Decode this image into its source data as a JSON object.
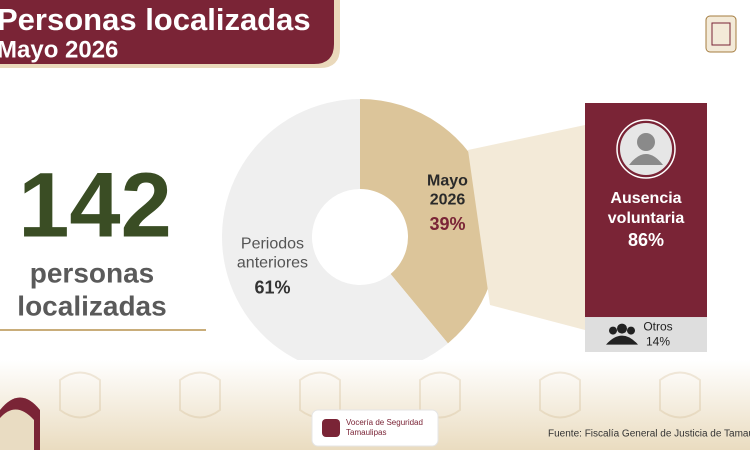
{
  "header": {
    "title": "Personas localizadas",
    "subtitle": "Mayo 2026"
  },
  "kpi": {
    "value": "142",
    "label_line1": "personas",
    "label_line2": "localizadas"
  },
  "chart_data": [
    {
      "type": "pie",
      "categories": [
        "Mayo 2026",
        "Periodos anteriores"
      ],
      "values": [
        39,
        61
      ],
      "value_labels": [
        "39%",
        "61%"
      ],
      "colors": [
        "#dcc59a",
        "#efefef"
      ]
    },
    {
      "type": "bar",
      "categories": [
        "Ausencia voluntaria",
        "Otros"
      ],
      "values": [
        86,
        14
      ],
      "value_labels": [
        "86%",
        "14%"
      ],
      "colors": [
        "#7a2436",
        "#dedede"
      ]
    }
  ],
  "footer": {
    "agency_line1": "Vocería de Seguridad",
    "agency_line2": "Tamaulipas",
    "source": "Fuente: Fiscalía General de Justicia de Tamaulipas"
  }
}
